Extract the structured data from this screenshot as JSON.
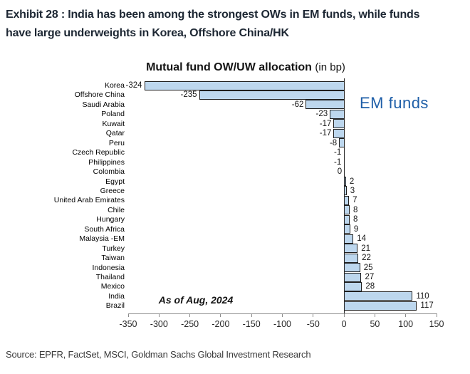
{
  "page": {
    "exhibit_title_line1": "Exhibit 28 : India has been among the strongest OWs in EM funds, while funds",
    "exhibit_title_line2": "have large underweights in Korea, Offshore China/HK",
    "source": "Source: EPFR, FactSet, MSCI, Goldman Sachs Global Investment Research"
  },
  "chart_data": {
    "type": "bar",
    "orientation": "horizontal",
    "title": "Mutual fund OW/UW allocation",
    "title_suffix": "(in bp)",
    "series_label": "EM funds",
    "annotation": "As of Aug, 2024",
    "categories": [
      "Korea",
      "Offshore China",
      "Saudi Arabia",
      "Poland",
      "Kuwait",
      "Qatar",
      "Peru",
      "Czech Republic",
      "Philippines",
      "Colombia",
      "Egypt",
      "Greece",
      "United Arab Emirates",
      "Chile",
      "Hungary",
      "South Africa",
      "Malaysia -EM",
      "Turkey",
      "Taiwan",
      "Indonesia",
      "Thailand",
      "Mexico",
      "India",
      "Brazil"
    ],
    "values": [
      -324,
      -235,
      -62,
      -23,
      -17,
      -17,
      -8,
      -1,
      -1,
      0,
      2,
      3,
      7,
      8,
      8,
      9,
      14,
      21,
      22,
      25,
      27,
      28,
      110,
      117
    ],
    "xlim": [
      -350,
      150
    ],
    "xticks": [
      -350,
      -300,
      -250,
      -200,
      -150,
      -100,
      -50,
      0,
      50,
      100,
      150
    ],
    "xlabel": "",
    "ylabel": "",
    "grid": false,
    "legend_position": "none",
    "colors": {
      "bar_fill": "#BDD7EE",
      "bar_border": "#1f1f1f",
      "series_label": "#1F5FA8",
      "axis": "#8c8c8c",
      "title": "#141414"
    }
  }
}
